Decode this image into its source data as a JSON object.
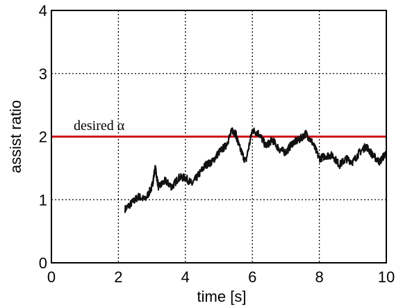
{
  "chart_data": {
    "type": "line",
    "xlabel": "time [s]",
    "ylabel": "assist ratio",
    "xlim": [
      0,
      10
    ],
    "ylim": [
      0,
      4
    ],
    "x_ticks": [
      "0",
      "2",
      "4",
      "6",
      "8",
      "10"
    ],
    "y_ticks": [
      "0",
      "1",
      "2",
      "3",
      "4"
    ],
    "grid": true,
    "annotation": "desired α",
    "reference_line": {
      "y": 2.0,
      "color": "#d0101e"
    },
    "series": [
      {
        "color": "#111111",
        "x": [
          2.2,
          2.4,
          2.6,
          2.8,
          3.0,
          3.1,
          3.2,
          3.4,
          3.6,
          3.8,
          4.0,
          4.2,
          4.4,
          4.6,
          4.8,
          5.0,
          5.2,
          5.4,
          5.5,
          5.6,
          5.8,
          6.0,
          6.2,
          6.4,
          6.6,
          6.8,
          7.0,
          7.2,
          7.4,
          7.6,
          7.8,
          8.0,
          8.2,
          8.4,
          8.6,
          8.8,
          9.0,
          9.2,
          9.4,
          9.6,
          9.8,
          10.0
        ],
        "y": [
          0.85,
          0.95,
          1.05,
          1.0,
          1.2,
          1.5,
          1.2,
          1.3,
          1.2,
          1.35,
          1.35,
          1.25,
          1.4,
          1.55,
          1.6,
          1.75,
          1.85,
          2.1,
          2.05,
          1.85,
          1.6,
          2.1,
          2.05,
          1.85,
          1.95,
          1.8,
          1.75,
          1.9,
          1.95,
          2.05,
          1.9,
          1.65,
          1.7,
          1.7,
          1.55,
          1.65,
          1.6,
          1.75,
          1.85,
          1.7,
          1.6,
          1.75
        ]
      }
    ]
  }
}
